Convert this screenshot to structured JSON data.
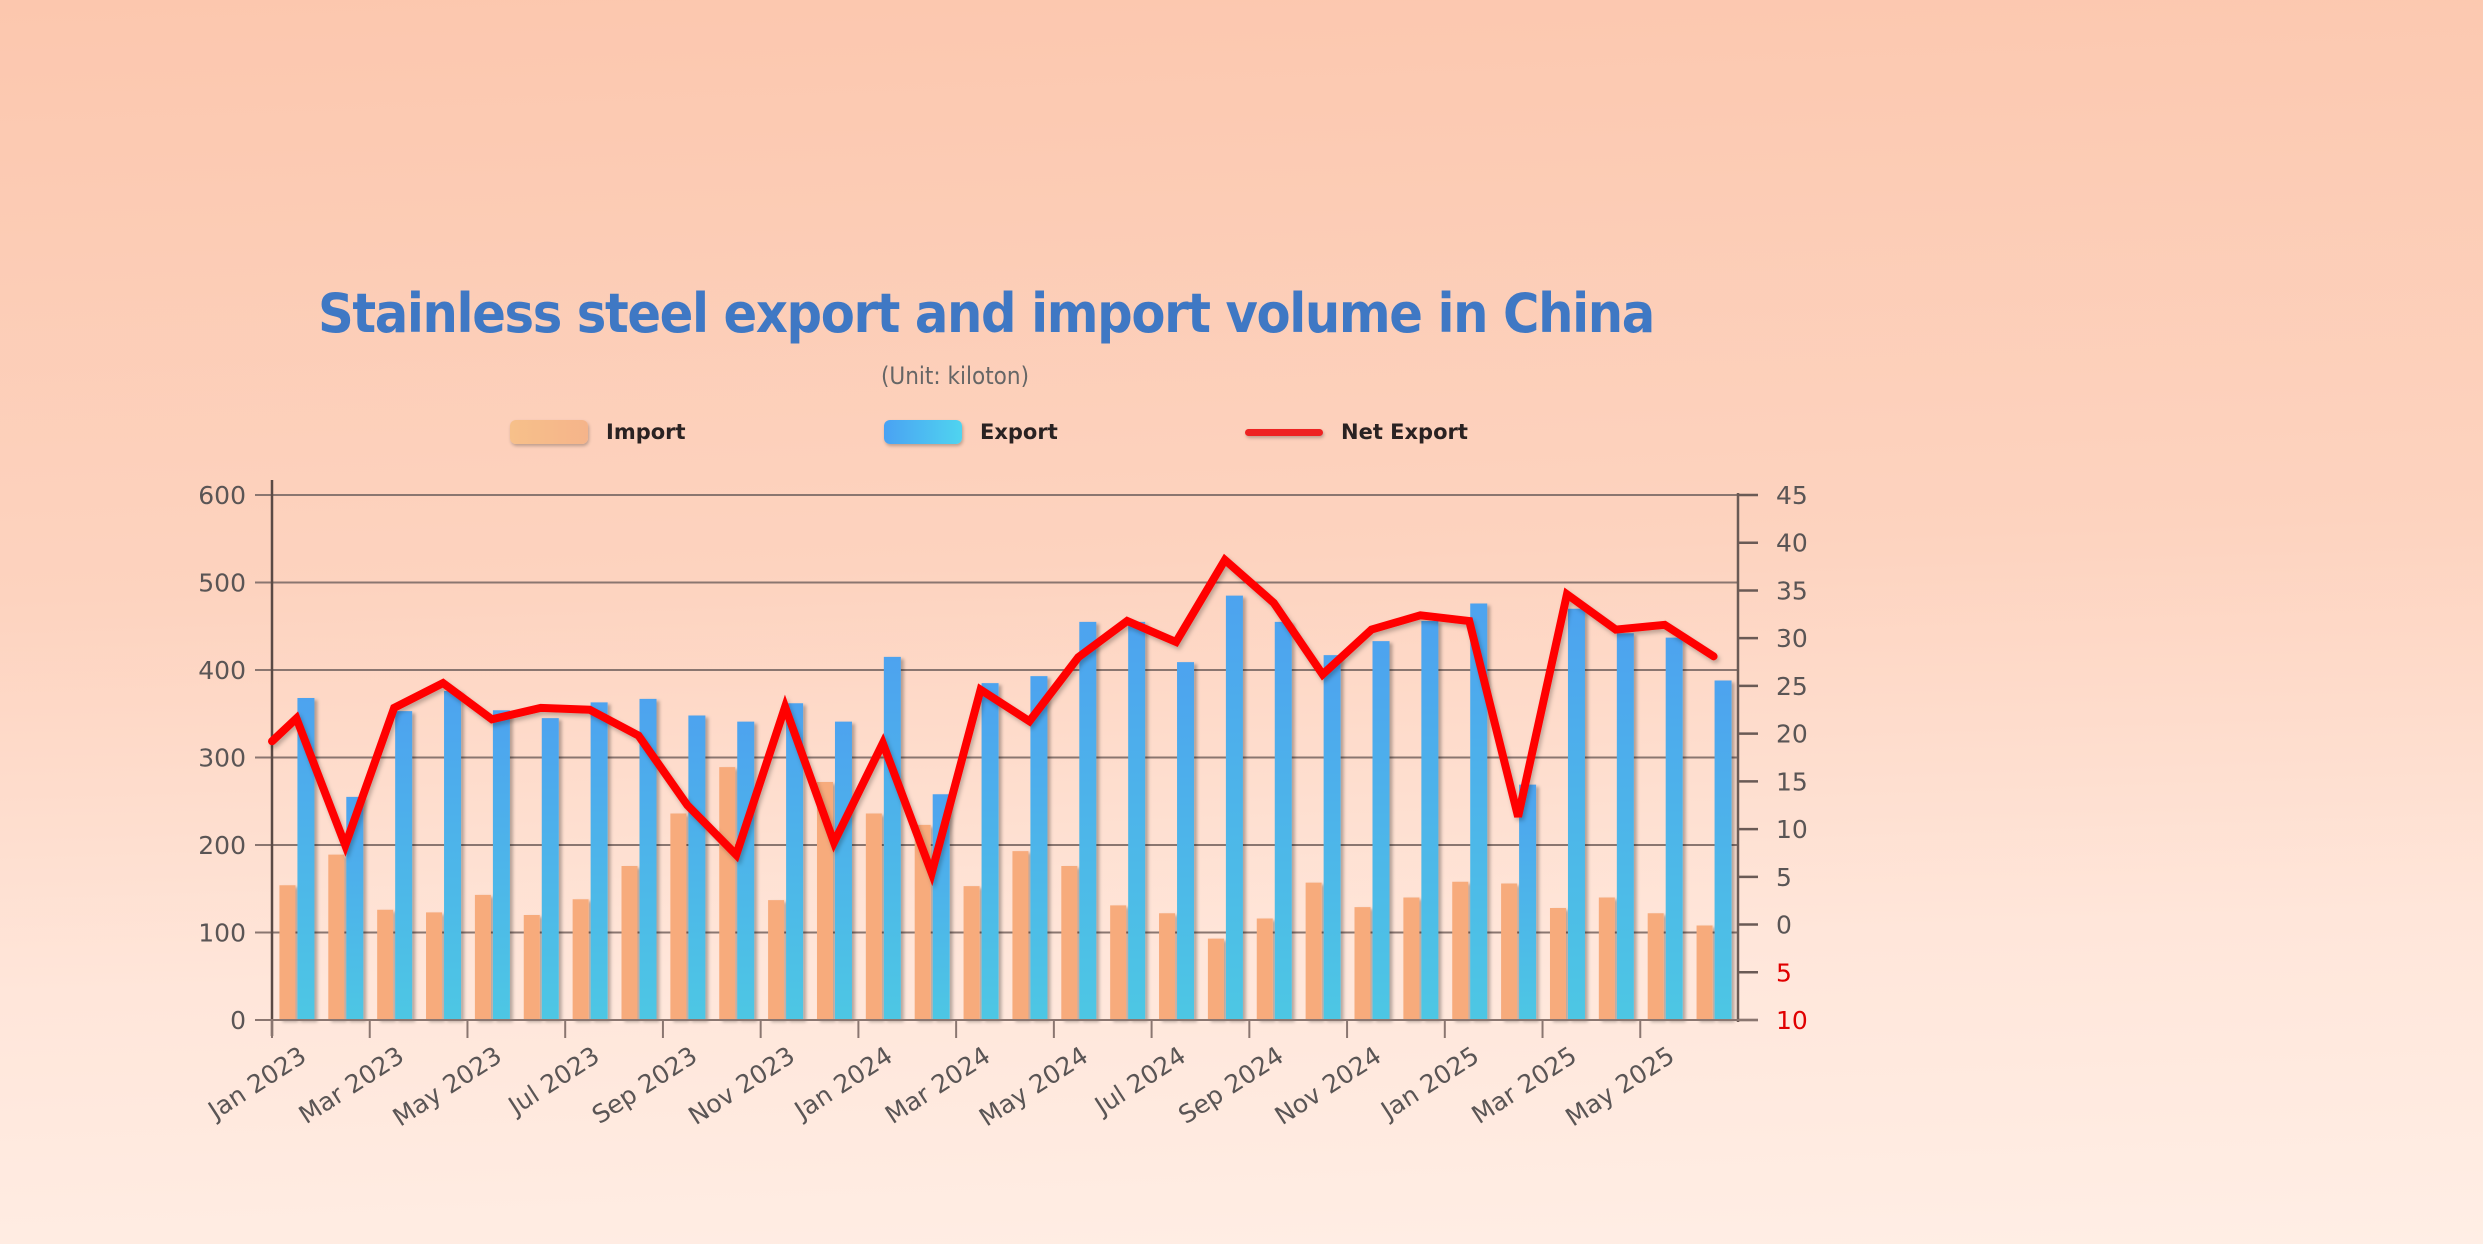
{
  "chart_data": {
    "type": "bar",
    "title": "Stainless steel export and import volume in China",
    "subtitle": "(Unit: kiloton)",
    "categories": [
      "Jan 2023",
      "Feb 2023",
      "Mar 2023",
      "Apr 2023",
      "May 2023",
      "Jun 2023",
      "Jul 2023",
      "Aug 2023",
      "Sep 2023",
      "Oct 2023",
      "Nov 2023",
      "Dec 2023",
      "Jan 2024",
      "Feb 2024",
      "Mar 2024",
      "Apr 2024",
      "May 2024",
      "Jun 2024",
      "Jul 2024",
      "Aug 2024",
      "Sep 2024",
      "Oct 2024",
      "Nov 2024",
      "Dec 2024",
      "Jan 2025",
      "Feb 2025",
      "Mar 2025",
      "Apr 2025",
      "May 2025",
      "Jun 2025"
    ],
    "x_tick_labels": [
      "Jan 2023",
      "Mar 2023",
      "May 2023",
      "Jul 2023",
      "Sep 2023",
      "Nov 2023",
      "Jan 2024",
      "Mar 2024",
      "May 2024",
      "Jul 2024",
      "Sep 2024",
      "Nov 2024",
      "Jan 2025",
      "Mar 2025",
      "May 2025"
    ],
    "series": [
      {
        "name": "Import",
        "type": "bar",
        "axis": "left",
        "values": [
          154,
          189,
          126,
          123,
          143,
          120,
          138,
          176,
          236,
          289,
          137,
          272,
          236,
          223,
          153,
          193,
          176,
          131,
          122,
          93,
          116,
          157,
          129,
          140,
          158,
          156,
          128,
          140,
          122,
          108
        ]
      },
      {
        "name": "Export",
        "type": "bar",
        "axis": "left",
        "values": [
          368,
          255,
          353,
          376,
          354,
          345,
          363,
          367,
          348,
          341,
          362,
          341,
          415,
          258,
          385,
          393,
          455,
          455,
          409,
          485,
          455,
          417,
          433,
          456,
          476,
          269,
          470,
          442,
          437,
          388
        ]
      },
      {
        "name": "Net Export",
        "type": "line",
        "axis": "right",
        "values": [
          21.6,
          8.3,
          22.7,
          25.3,
          21.5,
          22.7,
          22.5,
          19.8,
          12.5,
          7.3,
          22.8,
          8.6,
          19.0,
          5.4,
          24.6,
          21.3,
          28.0,
          31.8,
          29.6,
          38.2,
          33.7,
          26.2,
          30.9,
          32.4,
          31.8,
          11.3,
          34.6,
          30.9,
          31.4,
          28.1
        ],
        "start_value": 19.2
      }
    ],
    "left_axis": {
      "ylim": [
        0,
        600
      ],
      "ticks": [
        "0",
        "100",
        "200",
        "300",
        "400",
        "500",
        "600"
      ]
    },
    "right_axis": {
      "ylim": [
        -10,
        45
      ],
      "ticks": [
        {
          "value": -10,
          "label": "10",
          "negative": true
        },
        {
          "value": -5,
          "label": "5",
          "negative": true
        },
        {
          "value": 0,
          "label": "0"
        },
        {
          "value": 5,
          "label": "5"
        },
        {
          "value": 10,
          "label": "10"
        },
        {
          "value": 15,
          "label": "15"
        },
        {
          "value": 20,
          "label": "20"
        },
        {
          "value": 25,
          "label": "25"
        },
        {
          "value": 30,
          "label": "30"
        },
        {
          "value": 35,
          "label": "35"
        },
        {
          "value": 40,
          "label": "40"
        },
        {
          "value": 45,
          "label": "45"
        }
      ]
    },
    "grid": true,
    "legend": {
      "placement": "top",
      "items": [
        "Import",
        "Export",
        "Net Export"
      ]
    },
    "colors": {
      "import": "#f7ab7c",
      "export_top": "#4ea3ef",
      "export_bottom": "#4ec5e5",
      "net": "#ff0000",
      "negative_tick": "#e00000"
    },
    "xlabel": "",
    "ylabel": ""
  }
}
